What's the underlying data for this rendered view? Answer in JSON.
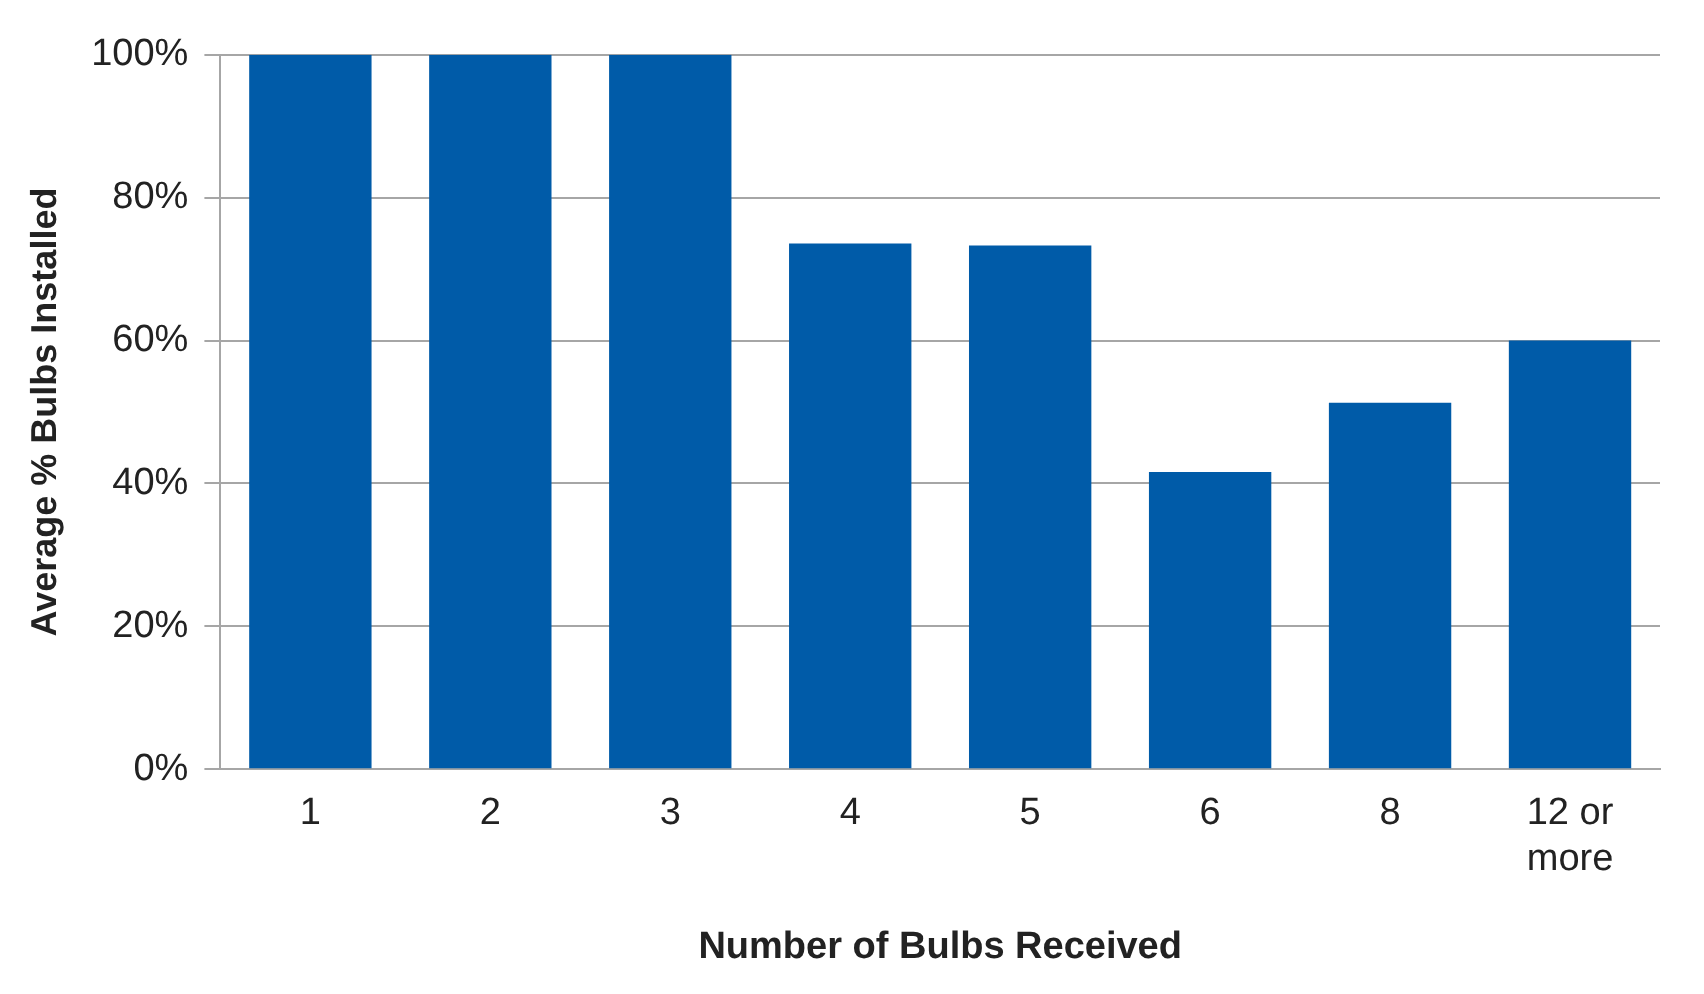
{
  "chart_data": {
    "type": "bar",
    "xlabel": "Number of Bulbs Received",
    "ylabel": "Average % Bulbs Installed",
    "categories": [
      "1",
      "2",
      "3",
      "4",
      "5",
      "6",
      "8",
      "12 or more"
    ],
    "values": [
      100,
      100,
      100,
      73.6,
      73.3,
      41.6,
      51.3,
      60
    ],
    "color": "#005ba8",
    "ylim": [
      0,
      100
    ],
    "yticks": [
      {
        "value": 0,
        "label": "0%"
      },
      {
        "value": 20,
        "label": "20%"
      },
      {
        "value": 40,
        "label": "40%"
      },
      {
        "value": 60,
        "label": "60%"
      },
      {
        "value": 80,
        "label": "80%"
      },
      {
        "value": 100,
        "label": "100%"
      }
    ],
    "grid": "y"
  }
}
